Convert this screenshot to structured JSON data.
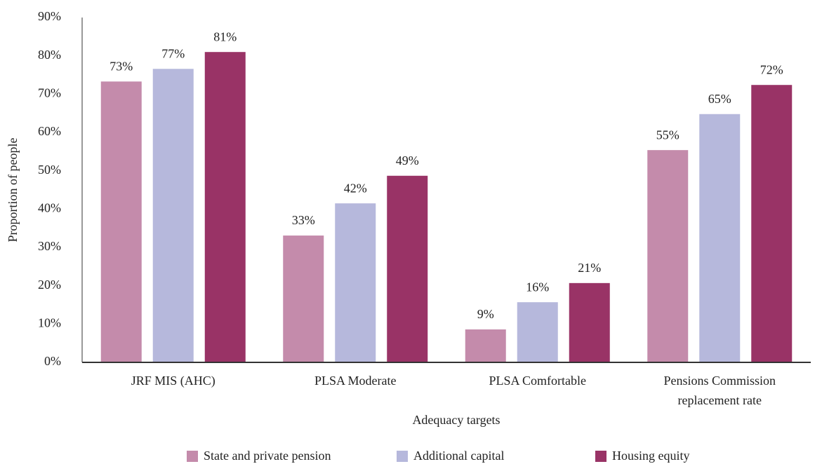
{
  "chart_data": {
    "type": "bar",
    "x_label": "Adequacy targets",
    "y_label": "Proportion of people",
    "categories": [
      "JRF MIS (AHC)",
      "PLSA Moderate",
      "PLSA Comfortable",
      "Pensions Commission replacement rate"
    ],
    "series": [
      {
        "name": "State and private pension",
        "color": "#c48bab",
        "values": [
          73.3,
          33.1,
          8.6,
          55.4
        ],
        "value_labels": [
          "73%",
          "33%",
          "9%",
          "55%"
        ]
      },
      {
        "name": "Additional capital",
        "color": "#b6b8dc",
        "values": [
          76.6,
          41.5,
          15.7,
          64.8
        ],
        "value_labels": [
          "77%",
          "42%",
          "16%",
          "65%"
        ]
      },
      {
        "name": "Housing equity",
        "color": "#993366",
        "values": [
          81,
          48.7,
          20.7,
          72.4
        ],
        "value_labels": [
          "81%",
          "49%",
          "21%",
          "72%"
        ]
      }
    ],
    "ylim": [
      0,
      90
    ],
    "yticks": [
      {
        "value": 0,
        "label": "0%"
      },
      {
        "value": 10,
        "label": "10%"
      },
      {
        "value": 20,
        "label": "20%"
      },
      {
        "value": 30,
        "label": "30%"
      },
      {
        "value": 40,
        "label": "40%"
      },
      {
        "value": 50,
        "label": "50%"
      },
      {
        "value": 60,
        "label": "60%"
      },
      {
        "value": 70,
        "label": "70%"
      },
      {
        "value": 80,
        "label": "80%"
      },
      {
        "value": 90,
        "label": "90%"
      }
    ],
    "grid": false,
    "legend": "bottom"
  }
}
